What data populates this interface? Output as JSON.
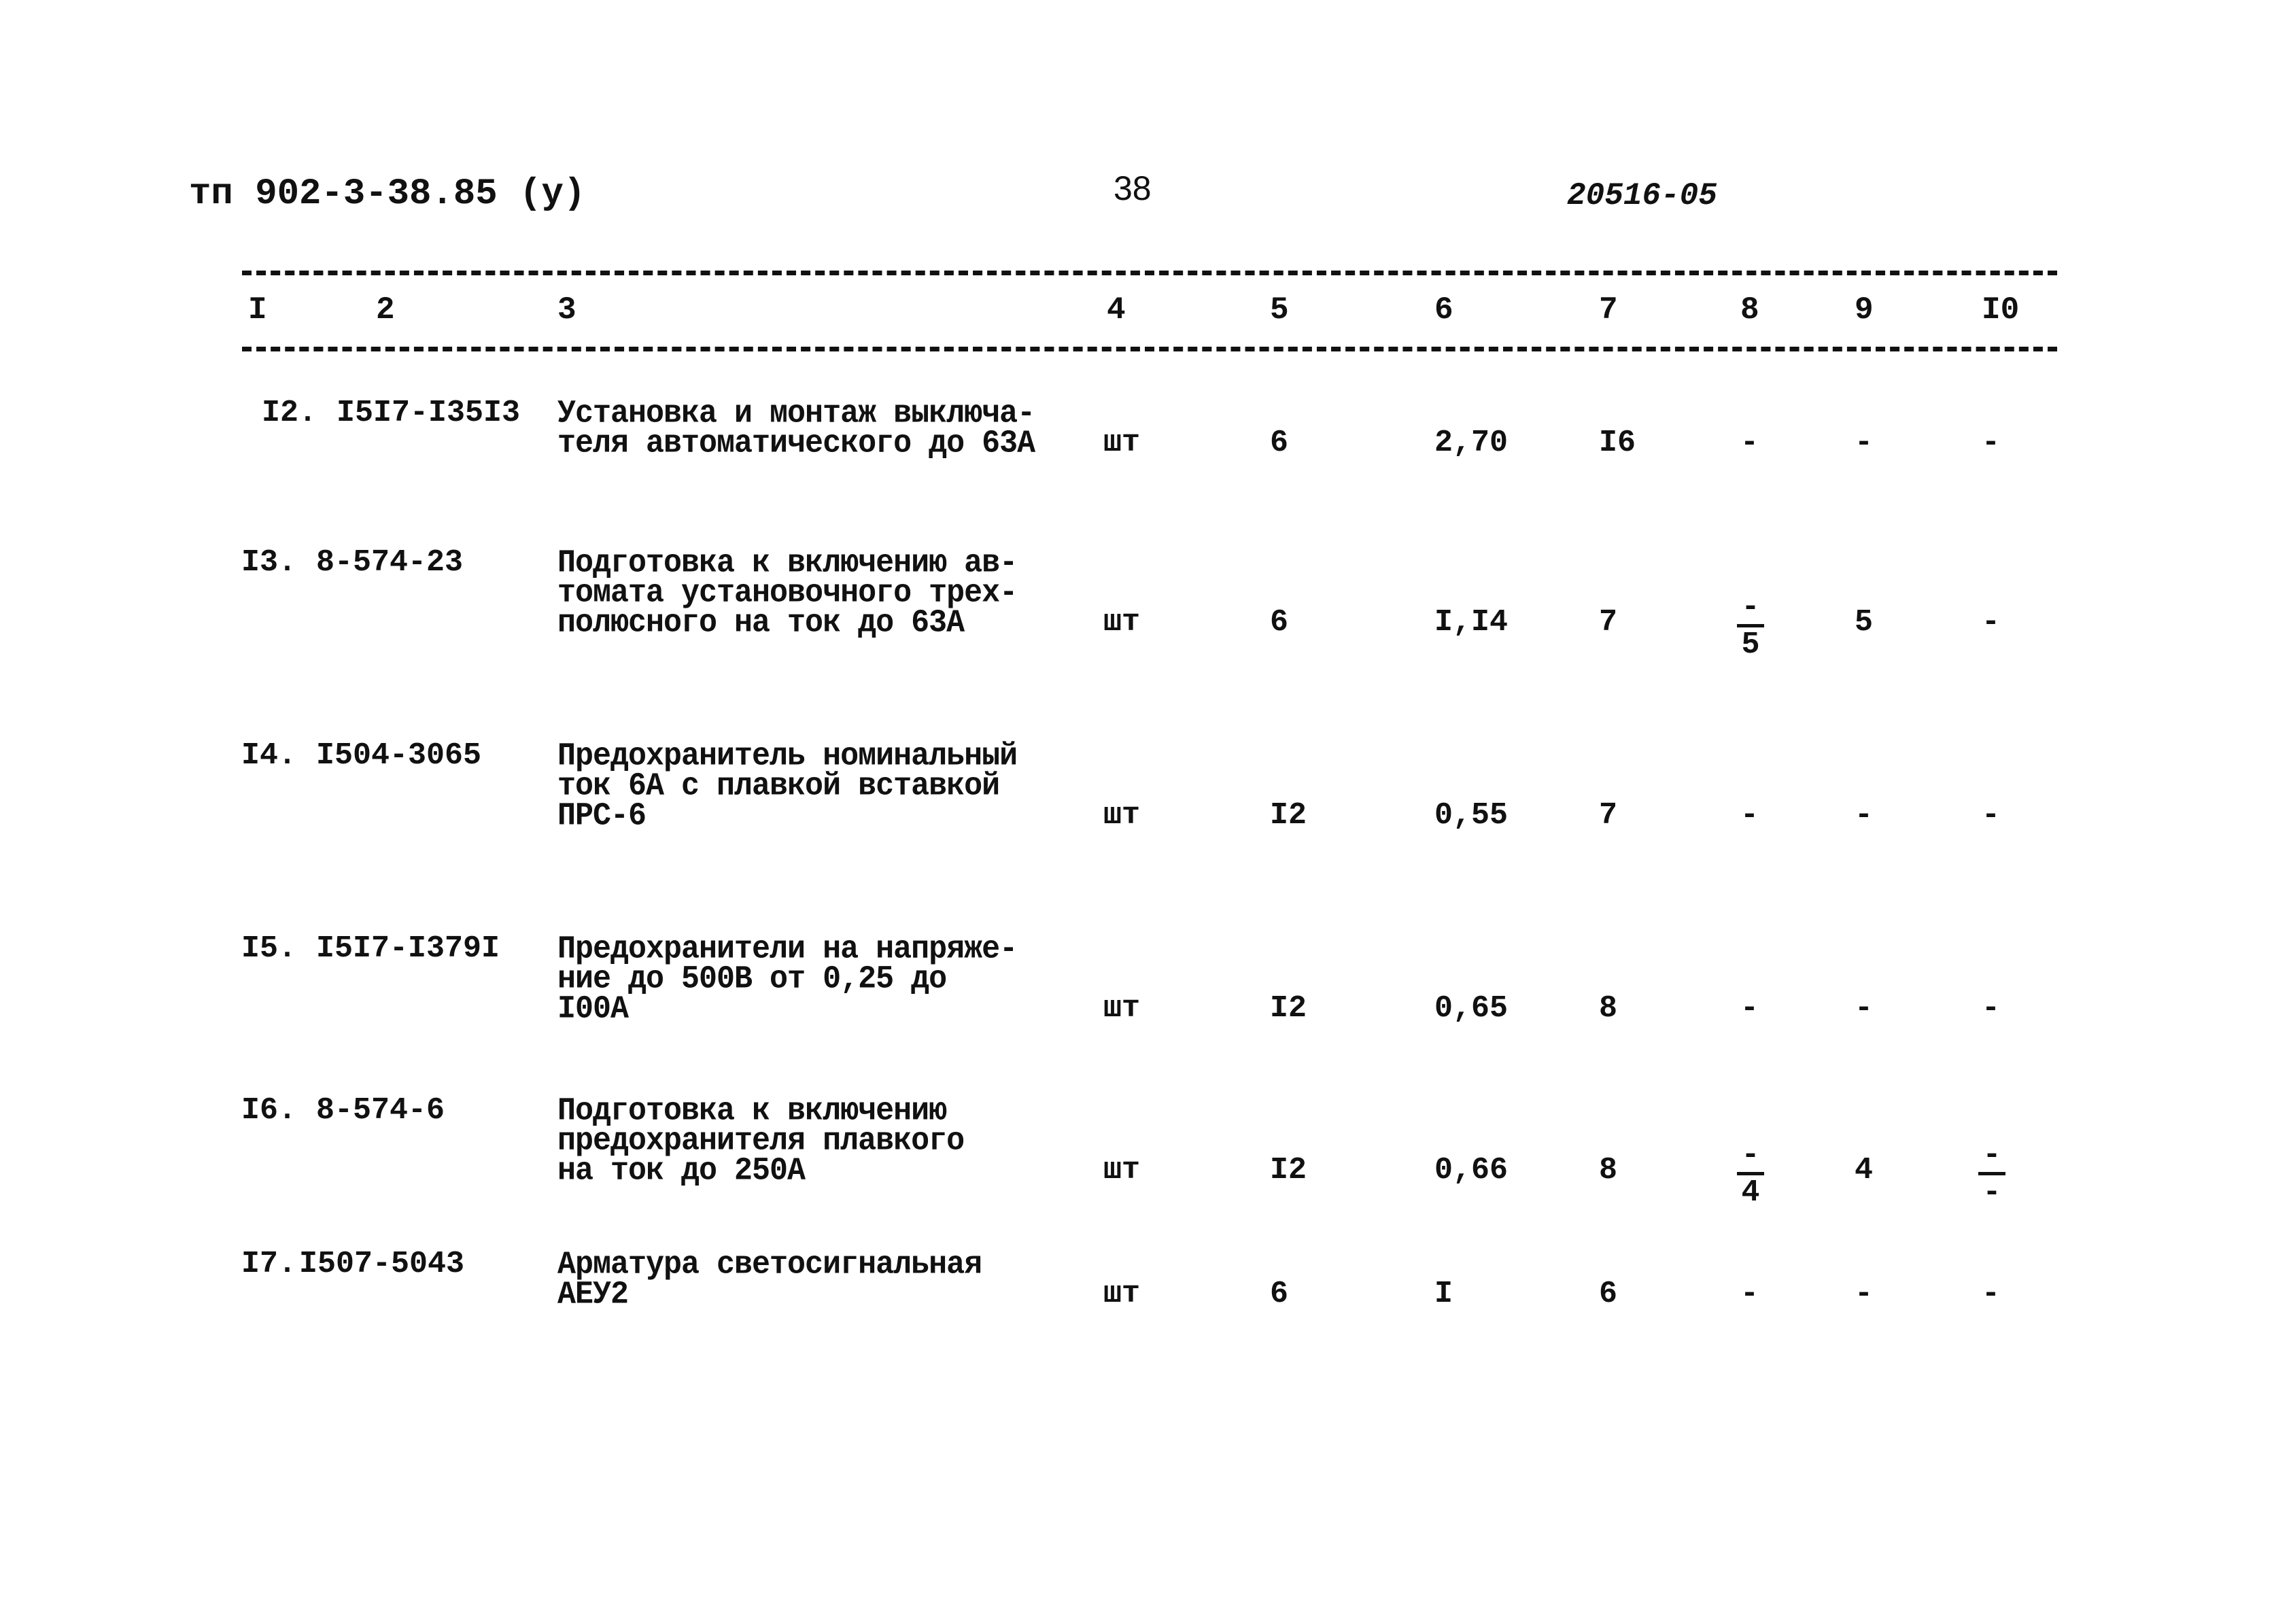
{
  "header": {
    "doc_code": "тп 902-3-38.85 (у)",
    "page_number": "38",
    "archive_number": "20516-05"
  },
  "columns": [
    "I",
    "2",
    "3",
    "4",
    "5",
    "6",
    "7",
    "8",
    "9",
    "I0"
  ],
  "rows": [
    {
      "num": "I2.",
      "code": "I5I7-I35I3",
      "desc": [
        "Установка и монтаж выключа-",
        "теля автоматического до 63А"
      ],
      "unit": "шт",
      "c5": "6",
      "c6": "2,70",
      "c7": "I6",
      "c8": "-",
      "c9": "-",
      "c10": "-"
    },
    {
      "num": "I3.",
      "code": "8-574-23",
      "desc": [
        "Подготовка к включению ав-",
        "томата установочного трех-",
        "полюсного на ток до 63А"
      ],
      "unit": "шт",
      "c5": "6",
      "c6": "I,I4",
      "c7": "7",
      "c8": {
        "num": "-",
        "den": "5"
      },
      "c9": "5",
      "c10": "-"
    },
    {
      "num": "I4.",
      "code": "I504-3065",
      "desc": [
        "Предохранитель номинальный",
        "ток 6А с плавкой вставкой",
        "ПРС-6"
      ],
      "unit": "шт",
      "c5": "I2",
      "c6": "0,55",
      "c7": "7",
      "c8": "-",
      "c9": "-",
      "c10": "-"
    },
    {
      "num": "I5.",
      "code": "I5I7-I379I",
      "desc": [
        "Предохранители на напряже-",
        "ние до 500В от 0,25 до",
        "I00А"
      ],
      "unit": "шт",
      "c5": "I2",
      "c6": "0,65",
      "c7": "8",
      "c8": "-",
      "c9": "-",
      "c10": "-"
    },
    {
      "num": "I6.",
      "code": "8-574-6",
      "desc": [
        "Подготовка к включению",
        "предохранителя плавкого",
        "на ток до 250А"
      ],
      "unit": "шт",
      "c5": "I2",
      "c6": "0,66",
      "c7": "8",
      "c8": {
        "num": "-",
        "den": "4"
      },
      "c9": "4",
      "c10": {
        "num": "-",
        "den": "-"
      }
    },
    {
      "num": "I7.",
      "code": "I507-5043",
      "desc": [
        "Арматура светосигнальная",
        "АЕУ2"
      ],
      "unit": "шт",
      "c5": "6",
      "c6": "I",
      "c7": "6",
      "c8": "-",
      "c9": "-",
      "c10": "-"
    }
  ]
}
